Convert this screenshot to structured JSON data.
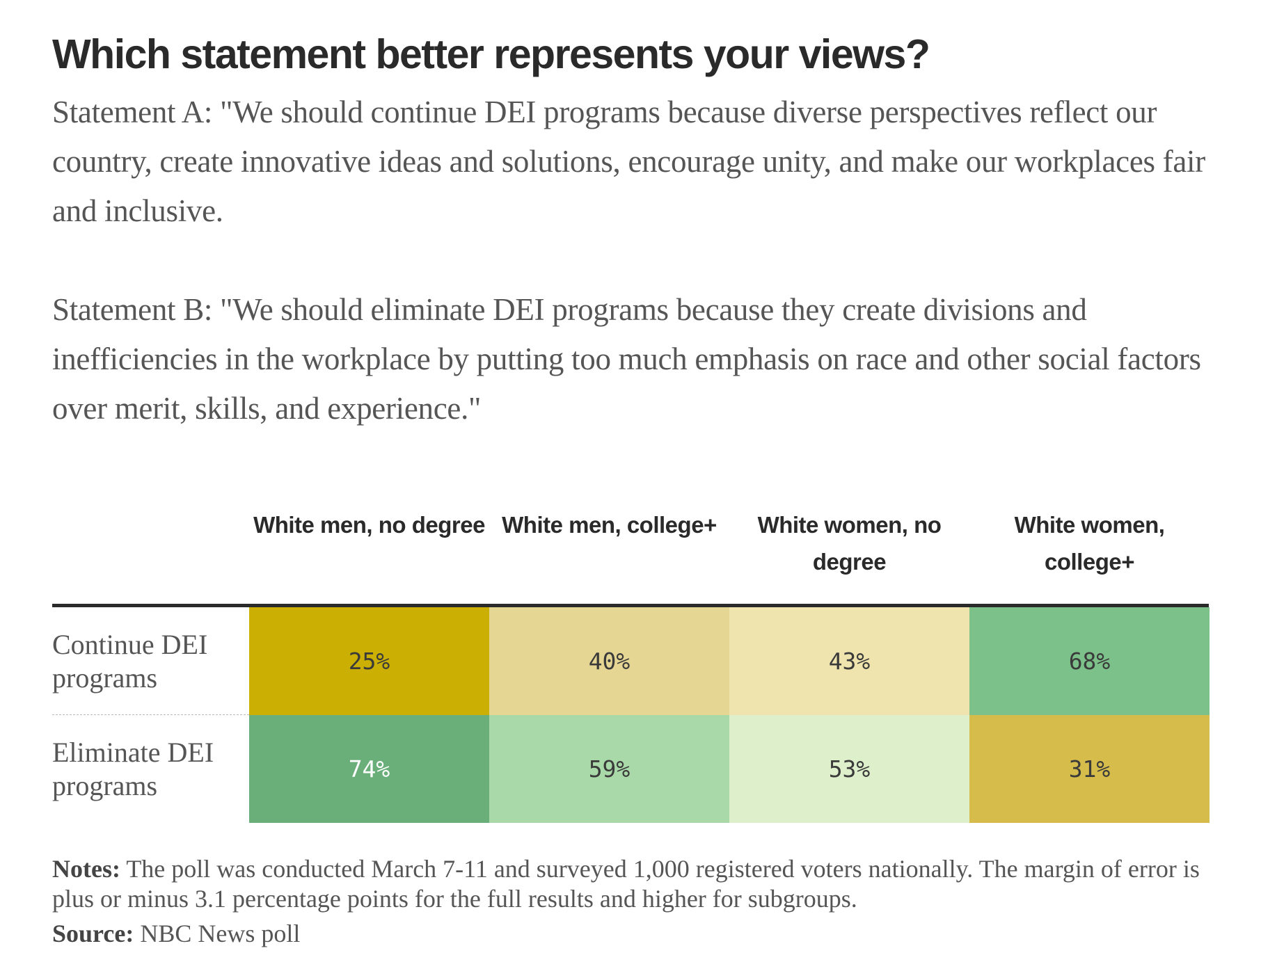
{
  "chart_data": {
    "type": "heatmap",
    "title": "Which statement better represents your views?",
    "statement_a": "Statement A: \"We should continue DEI programs because diverse perspectives reflect our country, create innovative ideas and solutions, encourage unity, and make our workplaces fair and inclusive.",
    "statement_b": "Statement B: \"We should eliminate DEI programs because they create divisions and inefficiencies in the workplace by putting too much emphasis on race and other social factors over merit, skills, and experience.\"",
    "columns": [
      "White men, no degree",
      "White men, college+",
      "White women, no degree",
      "White women, college+"
    ],
    "rows": [
      {
        "label": "Continue DEI programs",
        "values": [
          25,
          40,
          43,
          68
        ],
        "display": [
          "25%",
          "40%",
          "43%",
          "68%"
        ],
        "colors": [
          "#cbb003",
          "#e6d693",
          "#efe4ad",
          "#7cc08a"
        ]
      },
      {
        "label": "Eliminate DEI programs",
        "values": [
          74,
          59,
          53,
          31
        ],
        "display": [
          "74%",
          "59%",
          "53%",
          "31%"
        ],
        "colors": [
          "#6aae79",
          "#aad9a9",
          "#ddefcb",
          "#d5bc4b"
        ]
      }
    ],
    "value_unit": "%"
  },
  "notes": {
    "label": "Notes:",
    "text": " The poll was conducted March 7-11 and surveyed 1,000 registered voters nationally. The margin of error is plus or minus 3.1 percentage points for the full results and higher for subgroups."
  },
  "source": {
    "label": "Source:",
    "text": " NBC News poll"
  }
}
